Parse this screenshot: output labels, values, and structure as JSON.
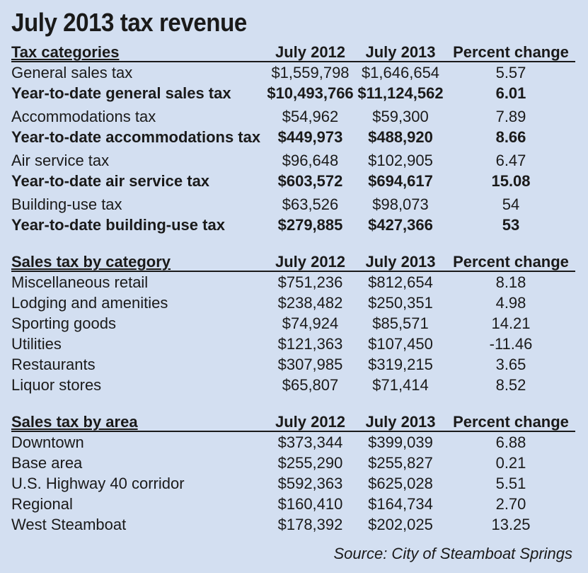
{
  "chart_data": {
    "type": "table",
    "title": "July 2013 tax revenue",
    "source": "Source: City of Steamboat Springs",
    "sections": [
      {
        "header": [
          "Tax categories",
          "July 2012",
          "July 2013",
          "Percent change"
        ],
        "rows": [
          {
            "label": "General sales tax",
            "v2012": "$1,559,798",
            "v2013": "$1,646,654",
            "change": "5.57",
            "bold": false
          },
          {
            "label": "Year-to-date general sales tax",
            "v2012": "$10,493,766",
            "v2013": "$11,124,562",
            "change": "6.01",
            "bold": true
          },
          {
            "label": "Accommodations tax",
            "v2012": "$54,962",
            "v2013": "$59,300",
            "change": "7.89",
            "bold": false
          },
          {
            "label": "Year-to-date accommodations tax",
            "v2012": "$449,973",
            "v2013": "$488,920",
            "change": "8.66",
            "bold": true
          },
          {
            "label": "Air service tax",
            "v2012": "$96,648",
            "v2013": "$102,905",
            "change": "6.47",
            "bold": false
          },
          {
            "label": "Year-to-date air service tax",
            "v2012": "$603,572",
            "v2013": "$694,617",
            "change": "15.08",
            "bold": true
          },
          {
            "label": "Building-use tax",
            "v2012": "$63,526",
            "v2013": "$98,073",
            "change": "54",
            "bold": false
          },
          {
            "label": "Year-to-date building-use tax",
            "v2012": "$279,885",
            "v2013": "$427,366",
            "change": "53",
            "bold": true
          }
        ]
      },
      {
        "header": [
          "Sales tax by category",
          "July 2012",
          "July 2013",
          "Percent change"
        ],
        "rows": [
          {
            "label": "Miscellaneous retail",
            "v2012": "$751,236",
            "v2013": "$812,654",
            "change": "8.18",
            "bold": false
          },
          {
            "label": "Lodging and amenities",
            "v2012": "$238,482",
            "v2013": "$250,351",
            "change": "4.98",
            "bold": false
          },
          {
            "label": "Sporting goods",
            "v2012": "$74,924",
            "v2013": "$85,571",
            "change": "14.21",
            "bold": false
          },
          {
            "label": "Utilities",
            "v2012": "$121,363",
            "v2013": "$107,450",
            "change": "-11.46",
            "bold": false
          },
          {
            "label": "Restaurants",
            "v2012": "$307,985",
            "v2013": "$319,215",
            "change": "3.65",
            "bold": false
          },
          {
            "label": "Liquor stores",
            "v2012": "$65,807",
            "v2013": "$71,414",
            "change": "8.52",
            "bold": false
          }
        ]
      },
      {
        "header": [
          "Sales tax by area",
          "July 2012",
          "July 2013",
          "Percent change"
        ],
        "rows": [
          {
            "label": "Downtown",
            "v2012": "$373,344",
            "v2013": "$399,039",
            "change": "6.88",
            "bold": false
          },
          {
            "label": "Base area",
            "v2012": "$255,290",
            "v2013": "$255,827",
            "change": "0.21",
            "bold": false
          },
          {
            "label": "U.S. Highway 40 corridor",
            "v2012": "$592,363",
            "v2013": "$625,028",
            "change": "5.51",
            "bold": false
          },
          {
            "label": "Regional",
            "v2012": "$160,410",
            "v2013": "$164,734",
            "change": "2.70",
            "bold": false
          },
          {
            "label": "West Steamboat",
            "v2012": "$178,392",
            "v2013": "$202,025",
            "change": "13.25",
            "bold": false
          }
        ]
      }
    ]
  }
}
